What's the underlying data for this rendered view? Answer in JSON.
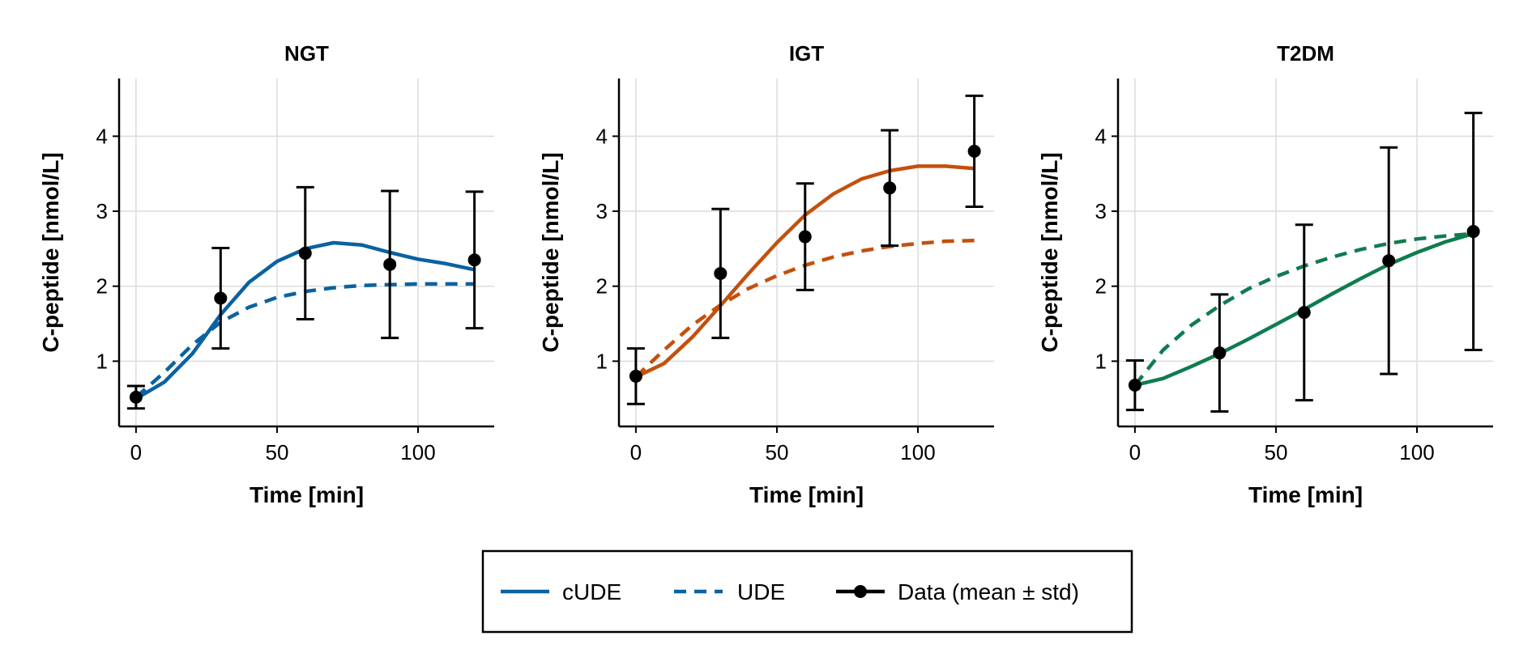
{
  "chart_data": [
    {
      "type": "line",
      "title": "NGT",
      "xlabel": "Time [min]",
      "ylabel": "C-peptide [nmol/L]",
      "xlim": [
        -6,
        127
      ],
      "ylim": [
        0.13,
        4.77
      ],
      "xticks": [
        0,
        50,
        100
      ],
      "yticks": [
        1,
        2,
        3,
        4
      ],
      "grid": true,
      "color": "#0a62a0",
      "series": [
        {
          "name": "cUDE",
          "style": "solid",
          "x": [
            0,
            10,
            20,
            30,
            40,
            50,
            60,
            70,
            80,
            90,
            100,
            110,
            120
          ],
          "y": [
            0.5,
            0.72,
            1.1,
            1.62,
            2.05,
            2.33,
            2.5,
            2.58,
            2.55,
            2.45,
            2.36,
            2.3,
            2.22
          ]
        },
        {
          "name": "UDE",
          "style": "dashed",
          "x": [
            0,
            10,
            20,
            30,
            40,
            50,
            60,
            70,
            80,
            90,
            100,
            110,
            120
          ],
          "y": [
            0.52,
            0.85,
            1.22,
            1.52,
            1.72,
            1.85,
            1.93,
            1.98,
            2.01,
            2.02,
            2.03,
            2.03,
            2.03
          ]
        },
        {
          "name": "Data (mean ± std)",
          "style": "points",
          "x": [
            0,
            30,
            60,
            90,
            120
          ],
          "y": [
            0.52,
            1.84,
            2.44,
            2.29,
            2.35
          ],
          "err": [
            0.15,
            0.67,
            0.88,
            0.98,
            0.91
          ]
        }
      ]
    },
    {
      "type": "line",
      "title": "IGT",
      "xlabel": "Time [min]",
      "ylabel": "C-peptide [nmol/L]",
      "xlim": [
        -6,
        127
      ],
      "ylim": [
        0.13,
        4.77
      ],
      "xticks": [
        0,
        50,
        100
      ],
      "yticks": [
        1,
        2,
        3,
        4
      ],
      "grid": true,
      "color": "#c4500c",
      "series": [
        {
          "name": "cUDE",
          "style": "solid",
          "x": [
            0,
            10,
            20,
            30,
            40,
            50,
            60,
            70,
            80,
            90,
            100,
            110,
            120
          ],
          "y": [
            0.79,
            0.97,
            1.32,
            1.74,
            2.17,
            2.58,
            2.95,
            3.23,
            3.43,
            3.54,
            3.6,
            3.6,
            3.57
          ]
        },
        {
          "name": "UDE",
          "style": "dashed",
          "x": [
            0,
            10,
            20,
            30,
            40,
            50,
            60,
            70,
            80,
            90,
            100,
            110,
            120
          ],
          "y": [
            0.79,
            1.15,
            1.48,
            1.75,
            1.97,
            2.14,
            2.28,
            2.39,
            2.47,
            2.53,
            2.57,
            2.6,
            2.61
          ]
        },
        {
          "name": "Data (mean ± std)",
          "style": "points",
          "x": [
            0,
            30,
            60,
            90,
            120
          ],
          "y": [
            0.8,
            2.17,
            2.66,
            3.31,
            3.8
          ],
          "err": [
            0.37,
            0.86,
            0.71,
            0.77,
            0.74
          ]
        }
      ]
    },
    {
      "type": "line",
      "title": "T2DM",
      "xlabel": "Time [min]",
      "ylabel": "C-peptide [nmol/L]",
      "xlim": [
        -6,
        127
      ],
      "ylim": [
        0.13,
        4.77
      ],
      "xticks": [
        0,
        50,
        100
      ],
      "yticks": [
        1,
        2,
        3,
        4
      ],
      "grid": true,
      "color": "#0f7c4f",
      "series": [
        {
          "name": "cUDE",
          "style": "solid",
          "x": [
            0,
            10,
            20,
            30,
            40,
            50,
            60,
            70,
            80,
            90,
            100,
            110,
            120
          ],
          "y": [
            0.68,
            0.77,
            0.93,
            1.1,
            1.29,
            1.49,
            1.69,
            1.9,
            2.1,
            2.29,
            2.45,
            2.59,
            2.7
          ]
        },
        {
          "name": "UDE",
          "style": "dashed",
          "x": [
            0,
            10,
            20,
            30,
            40,
            50,
            60,
            70,
            80,
            90,
            100,
            110,
            120
          ],
          "y": [
            0.68,
            1.15,
            1.48,
            1.74,
            1.96,
            2.13,
            2.27,
            2.39,
            2.49,
            2.57,
            2.63,
            2.67,
            2.7
          ]
        },
        {
          "name": "Data (mean ± std)",
          "style": "points",
          "x": [
            0,
            30,
            60,
            90,
            120
          ],
          "y": [
            0.68,
            1.11,
            1.65,
            2.34,
            2.73
          ],
          "err": [
            0.33,
            0.78,
            1.17,
            1.51,
            1.58
          ]
        }
      ]
    }
  ],
  "legend": {
    "placement": "bottom-center",
    "items": [
      {
        "label": "cUDE",
        "style": "solid",
        "color": "#0a62a0"
      },
      {
        "label": "UDE",
        "style": "dashed",
        "color": "#0a62a0"
      },
      {
        "label": "Data (mean ± std)",
        "style": "points",
        "color": "#000000"
      }
    ]
  }
}
